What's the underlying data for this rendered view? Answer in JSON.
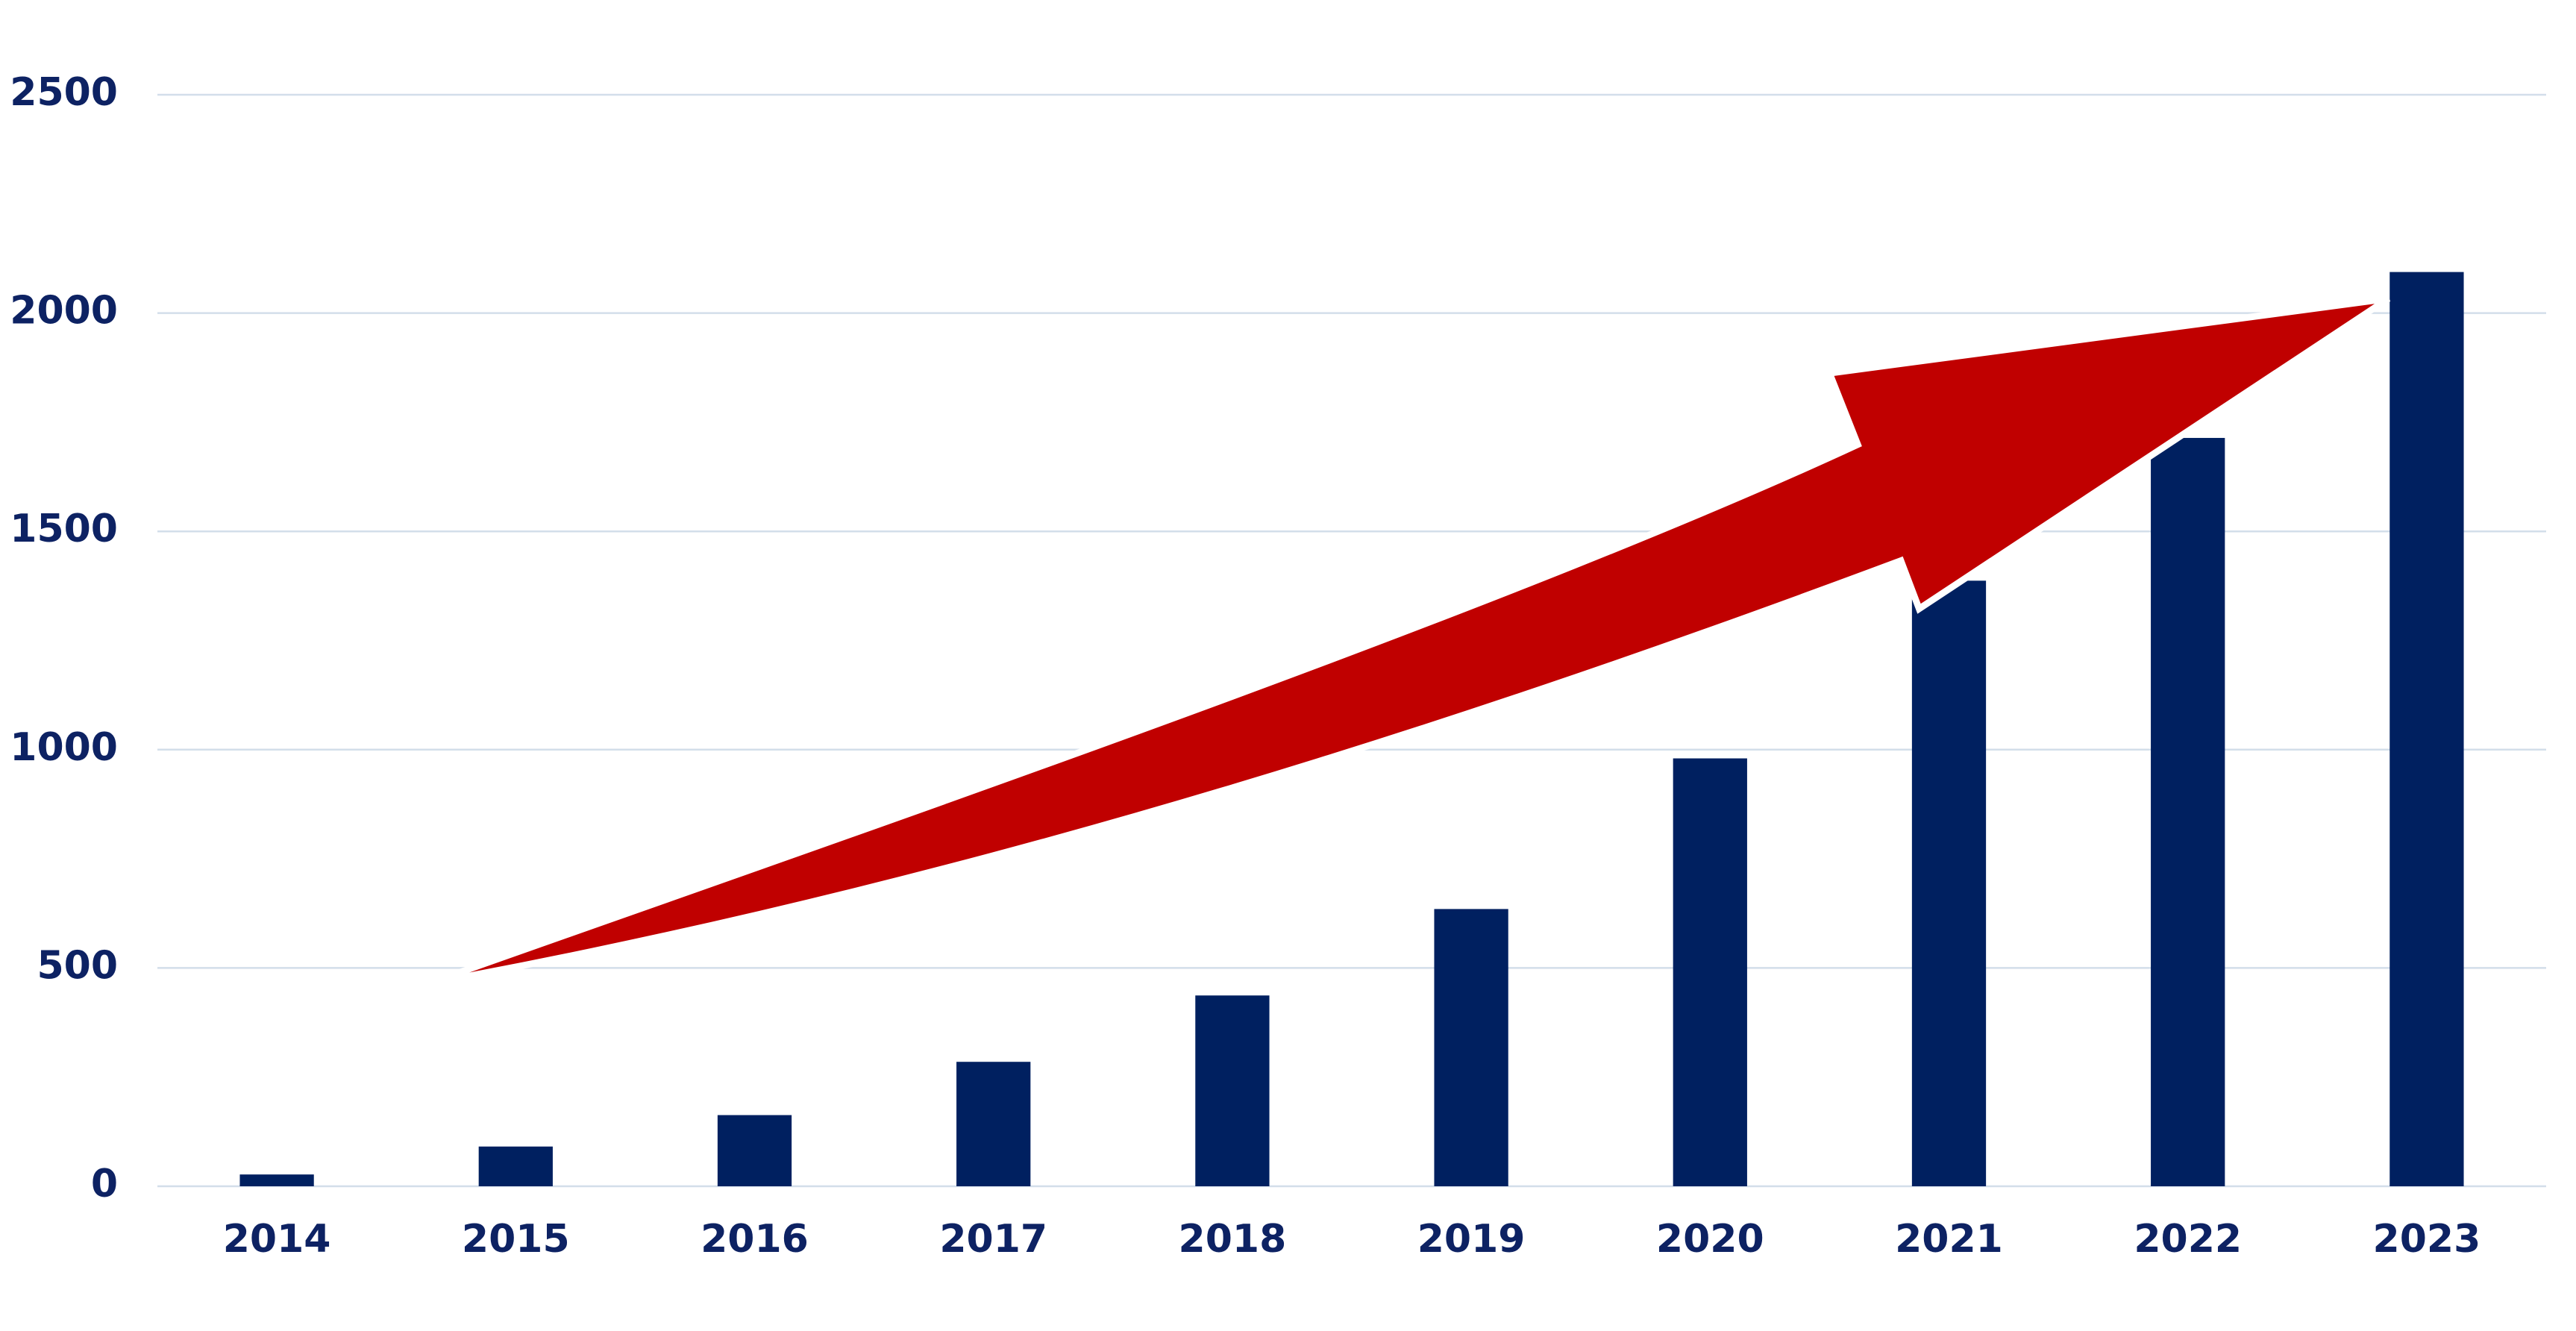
{
  "chart_data": {
    "type": "bar",
    "categories": [
      "2014",
      "2015",
      "2016",
      "2017",
      "2018",
      "2019",
      "2020",
      "2021",
      "2022",
      "2023"
    ],
    "values": [
      27,
      91,
      163,
      285,
      437,
      635,
      980,
      1387,
      1714,
      2094
    ],
    "color": "#002060",
    "ylim": [
      0,
      2500
    ],
    "yticks": [
      0,
      500,
      1000,
      1500,
      2000,
      2500
    ],
    "grid": true
  }
}
